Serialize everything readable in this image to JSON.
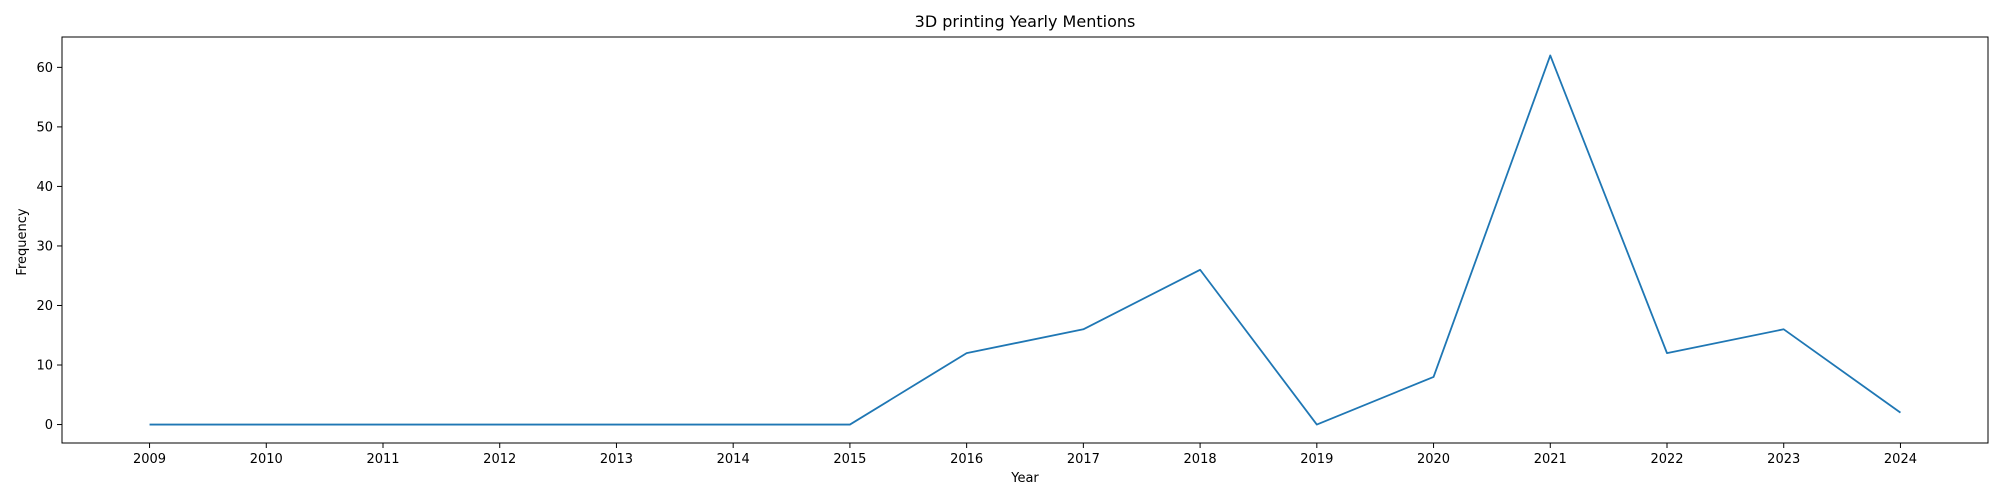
{
  "chart_data": {
    "type": "line",
    "title": "3D printing Yearly Mentions",
    "xlabel": "Year",
    "ylabel": "Frequency",
    "x": [
      2009,
      2010,
      2011,
      2012,
      2013,
      2014,
      2015,
      2016,
      2017,
      2018,
      2019,
      2020,
      2021,
      2022,
      2023,
      2024
    ],
    "series": [
      {
        "values": [
          0,
          0,
          0,
          0,
          0,
          0,
          0,
          12,
          16,
          26,
          0,
          8,
          62,
          12,
          16,
          2
        ],
        "color": "#1f77b4"
      }
    ],
    "xlim": [
      2008.25,
      2024.75
    ],
    "ylim": [
      -3.1,
      65.1
    ],
    "yticks": [
      0,
      10,
      20,
      30,
      40,
      50,
      60
    ],
    "grid": false,
    "legend": "none"
  }
}
